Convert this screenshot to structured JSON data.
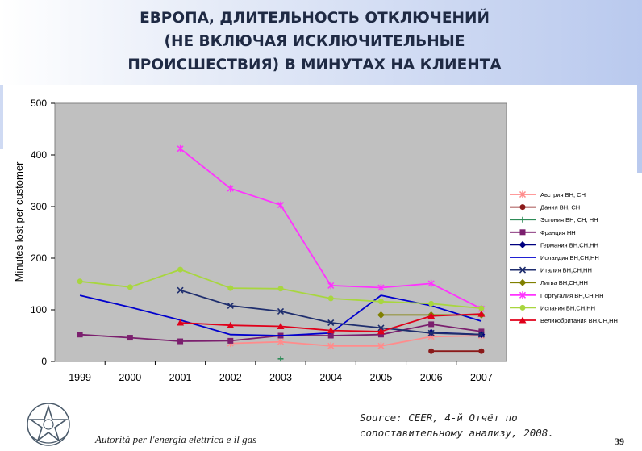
{
  "header": {
    "title_lines": [
      "ЕВРОПА, ДЛИТЕЛЬНОСТЬ ОТКЛЮЧЕНИЙ",
      "(НЕ ВКЛЮЧАЯ ИСКЛЮЧИТЕЛЬНЫЕ",
      "ПРОИСШЕСТВИЯ) В МИНУТАХ НА КЛИЕНТА"
    ]
  },
  "colors": {
    "plot_bg": "#c0c0c0",
    "header_accent": "#b9c9ee"
  },
  "chart_data": {
    "type": "line",
    "ylabel": "Minutes lost per customer",
    "xlabel": "",
    "ylim": [
      0,
      500
    ],
    "yticks": [
      0,
      100,
      200,
      300,
      400,
      500
    ],
    "grid": false,
    "legend_position": "right",
    "categories": [
      "1999",
      "2000",
      "2001",
      "2002",
      "2003",
      "2004",
      "2005",
      "2006",
      "2007"
    ],
    "series": [
      {
        "name": "Австрия ВН, СН",
        "color": "#ff8c8c",
        "marker": "star",
        "values": [
          null,
          null,
          null,
          35,
          38,
          30,
          30,
          48,
          50
        ]
      },
      {
        "name": "Дания ВН, СН",
        "color": "#8b1a1a",
        "marker": "circle",
        "values": [
          null,
          null,
          null,
          null,
          null,
          null,
          null,
          20,
          20
        ]
      },
      {
        "name": "Эстония ВН, СН, НН",
        "color": "#2e8b57",
        "marker": "plus",
        "values": [
          null,
          null,
          null,
          null,
          5,
          null,
          null,
          null,
          null
        ]
      },
      {
        "name": "Франция НН",
        "color": "#7b1f6e",
        "marker": "square",
        "values": [
          52,
          46,
          39,
          40,
          50,
          50,
          52,
          72,
          58
        ]
      },
      {
        "name": "Германия ВН,СН,НН",
        "color": "#000080",
        "marker": "diamond",
        "values": [
          null,
          null,
          null,
          null,
          null,
          null,
          null,
          56,
          52
        ]
      },
      {
        "name": "Исландия ВН,СН,НН",
        "color": "#0000cd",
        "marker": "none",
        "values": [
          128,
          105,
          80,
          52,
          50,
          55,
          128,
          108,
          78
        ]
      },
      {
        "name": "Италия ВН,СН,НН",
        "color": "#1f2e6e",
        "marker": "x",
        "values": [
          null,
          null,
          138,
          108,
          97,
          75,
          65,
          55,
          52
        ]
      },
      {
        "name": "Литва ВН,СН,НН",
        "color": "#808000",
        "marker": "diamond",
        "values": [
          null,
          null,
          null,
          null,
          null,
          null,
          90,
          90,
          90
        ]
      },
      {
        "name": "Португалия ВН,СН,НН",
        "color": "#ff33ff",
        "marker": "star",
        "values": [
          null,
          null,
          412,
          335,
          303,
          147,
          143,
          151,
          102
        ]
      },
      {
        "name": "Испания ВН,СН,НН",
        "color": "#a8d63f",
        "marker": "circle",
        "values": [
          155,
          144,
          178,
          142,
          141,
          122,
          116,
          112,
          103
        ]
      },
      {
        "name": "Великобритания ВН,СН,НН",
        "color": "#e0001a",
        "marker": "triangle",
        "values": [
          null,
          null,
          75,
          70,
          68,
          60,
          58,
          88,
          92
        ]
      }
    ]
  },
  "footer": {
    "org": "Autorità per l'energia elettrica e il gas",
    "source_lines": [
      "Source: CEER, 4-й Отчёт по",
      "сопоставительному анализу, 2008."
    ],
    "page_number": "39"
  }
}
